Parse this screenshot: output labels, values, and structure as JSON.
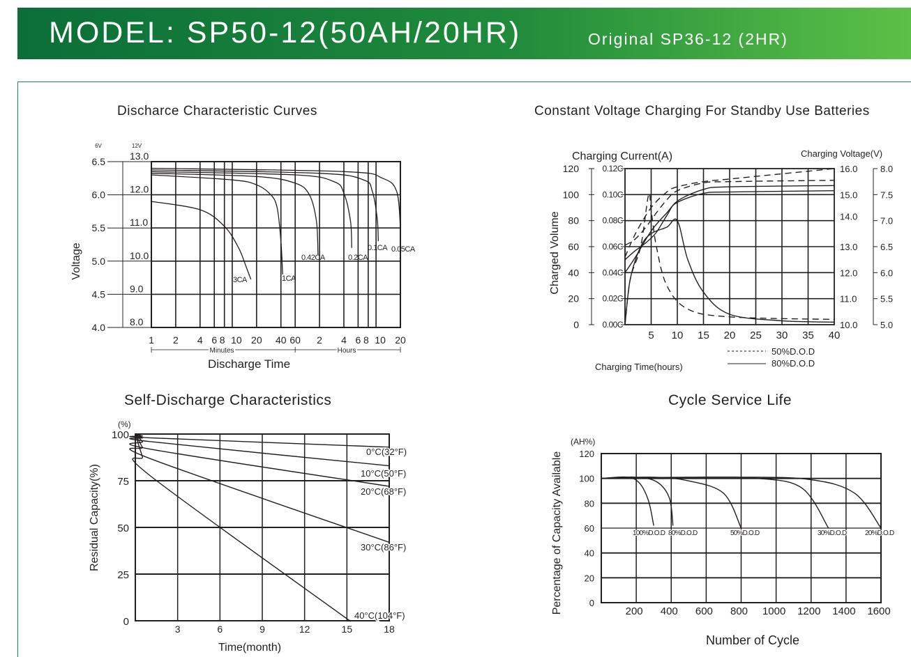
{
  "header": {
    "model": "MODEL: SP50-12(50AH/20HR)",
    "original": "Original SP36-12 (2HR)",
    "colors": {
      "banner_start": "#0b6e38",
      "banner_end": "#5cc046",
      "frame": "#1a8a44"
    }
  },
  "chart_data": [
    {
      "type": "line",
      "title": "Discharce Characteristic Curves",
      "xlabel": "Discharge Time",
      "ylabel": "Voltage",
      "x_scale": "log",
      "x_tick_labels": [
        "1",
        "2",
        "4",
        "6",
        "8",
        "10",
        "20",
        "40",
        "60",
        "2",
        "4",
        "6",
        "8",
        "10",
        "20"
      ],
      "x_unit_labels": [
        "Minutes",
        "Hours"
      ],
      "y_axis_6v": {
        "header": "6V",
        "ticks": [
          "6.5",
          "6.0",
          "5.5",
          "5.0",
          "4.5",
          "4.0"
        ]
      },
      "y_axis_12v": {
        "header": "12V",
        "ticks": [
          "13.0",
          "12.0",
          "11.0",
          "10.0",
          "9.0",
          "8.0"
        ]
      },
      "ylim_12v": [
        8.0,
        13.0
      ],
      "grid": true,
      "series": [
        {
          "name": "3CA",
          "x_min": [
            1,
            4,
            8,
            12,
            15,
            17
          ],
          "y": [
            11.8,
            11.55,
            11.05,
            10.4,
            9.8,
            9.45
          ]
        },
        {
          "name": "1CA",
          "x_min": [
            1,
            10,
            20,
            30,
            36,
            40,
            42
          ],
          "y": [
            12.6,
            12.45,
            12.3,
            12.0,
            11.6,
            10.6,
            9.6
          ]
        },
        {
          "name": "0.42CA",
          "x_min": [
            1,
            20,
            60,
            90,
            110,
            115
          ],
          "y": [
            12.65,
            12.55,
            12.35,
            12.0,
            11.2,
            10.2
          ]
        },
        {
          "name": "0.2CA",
          "x_min": [
            1,
            60,
            180,
            240,
            290,
            300
          ],
          "y": [
            12.7,
            12.6,
            12.4,
            12.05,
            11.2,
            10.4
          ]
        },
        {
          "name": "0.1CA",
          "x_min": [
            1,
            120,
            420,
            540,
            620,
            640
          ],
          "y": [
            12.75,
            12.65,
            12.45,
            12.1,
            11.3,
            10.6
          ]
        },
        {
          "name": "0.05CA",
          "x_min": [
            1,
            240,
            720,
            1080,
            1200
          ],
          "y": [
            12.8,
            12.7,
            12.5,
            12.1,
            11.0
          ]
        }
      ]
    },
    {
      "type": "line",
      "title": "Constant Voltage Charging For Standby Use Batteries",
      "xlabel": "Charging Time(hours)",
      "ylabel": "Charged Volume",
      "left_header": "Charging Current(A)",
      "right_header": "Charging Voltage(V)",
      "x_ticks": [
        "5",
        "10",
        "15",
        "20",
        "25",
        "30",
        "35",
        "40"
      ],
      "charged_volume_ticks": [
        "120",
        "100",
        "80",
        "60",
        "40",
        "20",
        "0"
      ],
      "current_ticks": [
        "0.12C",
        "0.10C",
        "0.08C",
        "0.06C",
        "0.04C",
        "0.02C",
        "0.00C"
      ],
      "voltage_12v_ticks": [
        "16.0",
        "15.0",
        "14.0",
        "13.0",
        "12.0",
        "11.0",
        "10.0"
      ],
      "voltage_6v_ticks": [
        "8.0",
        "7.5",
        "7.0",
        "6.5",
        "6.0",
        "5.5",
        "5.0"
      ],
      "legend": [
        {
          "label": "50%D.O.D",
          "style": "dashed"
        },
        {
          "label": "80%D.O.D",
          "style": "solid"
        }
      ],
      "grid": true,
      "series": [
        {
          "name": "80%D.O.D",
          "quantity": "charged volume (%)",
          "x": [
            0,
            2,
            4,
            6,
            8,
            10,
            15,
            20,
            40
          ],
          "y": [
            50,
            57,
            63,
            71,
            84,
            95,
            104,
            106,
            107
          ]
        },
        {
          "name": "50%D.O.D",
          "quantity": "charged volume (%)",
          "x": [
            0,
            2,
            4,
            6,
            8,
            10,
            15,
            20,
            40
          ],
          "y": [
            61,
            66,
            75,
            86,
            96,
            103,
            109,
            110,
            111
          ]
        },
        {
          "name": "80%D.O.D",
          "quantity": "charging current (C)",
          "x": [
            0,
            1,
            3,
            5,
            8,
            10,
            12,
            15,
            20,
            30,
            40
          ],
          "y": [
            0,
            0.035,
            0.06,
            0.07,
            0.075,
            0.08,
            0.05,
            0.025,
            0.008,
            0.003,
            0.002
          ]
        },
        {
          "name": "50%D.O.D",
          "quantity": "charging current (C)",
          "x": [
            0,
            1,
            3,
            4.5,
            5,
            6,
            8,
            12,
            20,
            40
          ],
          "y": [
            0,
            0.035,
            0.06,
            0.1,
            0.088,
            0.06,
            0.03,
            0.012,
            0.006,
            0.004
          ]
        },
        {
          "name": "80%D.O.D",
          "quantity": "charging voltage (12V)",
          "x": [
            0,
            2,
            5,
            8,
            10,
            15,
            20,
            40
          ],
          "y": [
            12.0,
            12.6,
            13.6,
            14.3,
            14.7,
            15.05,
            15.1,
            15.15
          ]
        },
        {
          "name": "50%D.O.D",
          "quantity": "charging voltage (12V)",
          "x": [
            0,
            2,
            5,
            8,
            10,
            15,
            20,
            40
          ],
          "y": [
            12.6,
            13.5,
            14.5,
            15.1,
            15.3,
            15.5,
            15.6,
            16.0
          ]
        }
      ]
    },
    {
      "type": "line",
      "title": "Self-Discharge  Characteristics",
      "xlabel": "Time(month)",
      "ylabel": "Residual Capacity(%)",
      "y_unit": "(%)",
      "x_ticks": [
        "3",
        "6",
        "9",
        "12",
        "15",
        "18"
      ],
      "y_ticks": [
        "100",
        "75",
        "50",
        "25",
        "0"
      ],
      "xlim": [
        0,
        18
      ],
      "ylim": [
        0,
        100
      ],
      "grid": true,
      "series": [
        {
          "name": "0°C(32°F)",
          "x": [
            0,
            0.5,
            1,
            18
          ],
          "y": [
            100,
            99,
            98,
            93
          ]
        },
        {
          "name": "10°C(50°F)",
          "x": [
            0,
            0.5,
            1,
            18
          ],
          "y": [
            100,
            98,
            96,
            83
          ]
        },
        {
          "name": "20°C(68°F)",
          "x": [
            0,
            0.5,
            1,
            18
          ],
          "y": [
            100,
            96,
            92,
            72
          ]
        },
        {
          "name": "30°C(86°F)",
          "x": [
            0,
            0.5,
            1,
            18
          ],
          "y": [
            100,
            93,
            87,
            42
          ]
        },
        {
          "name": "40°C(104°F)",
          "x": [
            0,
            0.5,
            1,
            15.2
          ],
          "y": [
            100,
            88,
            78,
            0
          ]
        }
      ]
    },
    {
      "type": "line",
      "title": "Cycle  Service  Life",
      "xlabel": "Number  of  Cycle",
      "ylabel": "Percentage  of  Capacity  Available",
      "y_unit": "(AH%)",
      "x_ticks": [
        "200",
        "400",
        "600",
        "800",
        "1000",
        "1200",
        "1400",
        "1600"
      ],
      "y_ticks": [
        "120",
        "100",
        "80",
        "60",
        "40",
        "20",
        "0"
      ],
      "xlim": [
        0,
        1600
      ],
      "ylim": [
        0,
        120
      ],
      "grid": true,
      "series": [
        {
          "name": "100%D.O.D",
          "x": [
            0,
            150,
            220,
            270,
            300
          ],
          "y": [
            100,
            101,
            96,
            82,
            62
          ]
        },
        {
          "name": "80%D.O.D",
          "x": [
            0,
            200,
            320,
            390,
            410
          ],
          "y": [
            100,
            101,
            97,
            84,
            62
          ]
        },
        {
          "name": "50%D.O.D",
          "x": [
            0,
            300,
            500,
            700,
            800
          ],
          "y": [
            100,
            101,
            98,
            88,
            60
          ]
        },
        {
          "name": "30%D.O.D",
          "x": [
            0,
            500,
            900,
            1150,
            1300
          ],
          "y": [
            100,
            101,
            100,
            92,
            60
          ]
        },
        {
          "name": "20%D.O.D",
          "x": [
            0,
            800,
            1200,
            1450,
            1600
          ],
          "y": [
            100,
            101,
            99,
            88,
            60
          ]
        }
      ]
    }
  ]
}
